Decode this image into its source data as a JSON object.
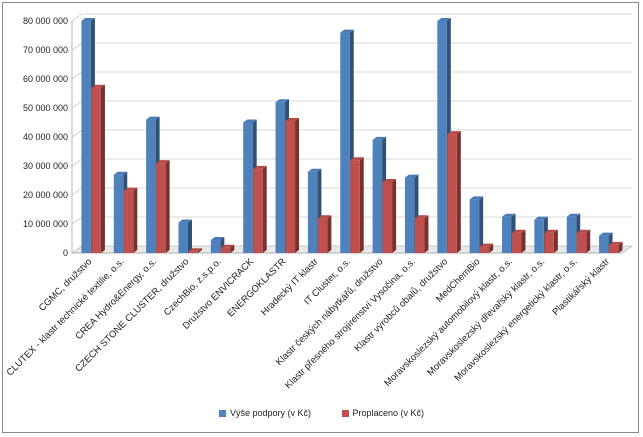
{
  "chart_data": {
    "type": "bar",
    "title": "",
    "xlabel": "",
    "ylabel": "",
    "ylim": [
      0,
      80000000
    ],
    "yticks": [
      "0",
      "10 000 000",
      "20 000 000",
      "30 000 000",
      "40 000 000",
      "50 000 000",
      "60 000 000",
      "70 000 000",
      "80 000 000"
    ],
    "legend_position": "bottom",
    "grid": true,
    "categories": [
      "CGMC, družstvo",
      "CLUTEX - klastr technické textilie, o.s.",
      "CREA Hydro&Energy, o.s.",
      "CZECH STONE CLUSTER, družstvo",
      "CzechBio, z.s.p.o.",
      "Družstvo ENVICRACK",
      "ENERGOKLASTR",
      "Hradecký IT klastr",
      "IT Cluster, o.s.",
      "Klastr českých nábytkářů, družstvo",
      "Klastr přesného strojírenství Vysočina, o.s.",
      "Klastr výrobců obalů, družstvo",
      "MedChemBio",
      "Moravskoslezský automobilový klastr, o.s.",
      "Moravskoslezský dřevařský klastr, o.s.",
      "Moravskoslezský energetický klastr, o.s.",
      "Plastikářský klastr"
    ],
    "series": [
      {
        "name": "Výše podpory (v Kč)",
        "color": "#4f81bd",
        "values": [
          80000000,
          27000000,
          46000000,
          10500000,
          4500000,
          45000000,
          52000000,
          28000000,
          76000000,
          39000000,
          26000000,
          80000000,
          18500000,
          12500000,
          11500000,
          12500000,
          6000000
        ]
      },
      {
        "name": "Proplaceno (v Kč)",
        "color": "#c0504d",
        "values": [
          57000000,
          21500000,
          31000000,
          600000,
          1800000,
          29000000,
          45500000,
          12000000,
          32000000,
          24500000,
          12000000,
          41000000,
          2200000,
          7000000,
          7000000,
          7000000,
          2800000
        ]
      }
    ]
  }
}
